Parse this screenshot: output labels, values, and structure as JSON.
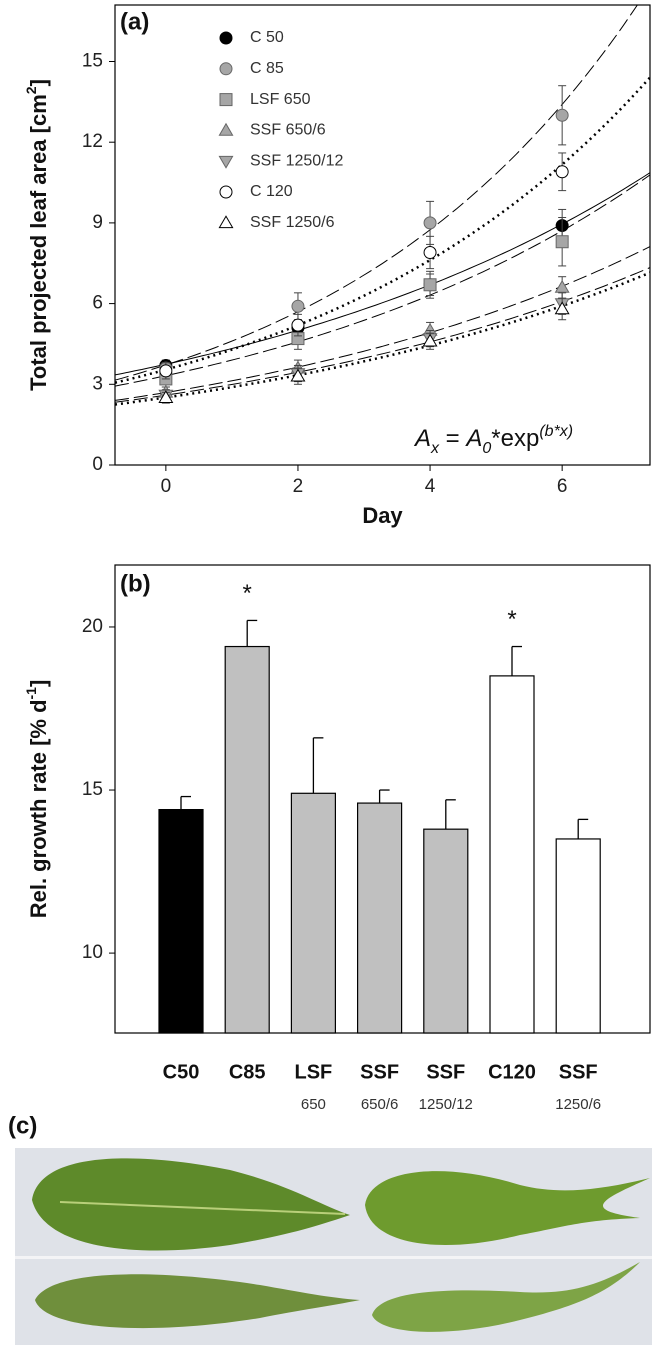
{
  "chart_data": [
    {
      "type": "scatter",
      "panel_label": "(a)",
      "xlabel": "Day",
      "ylabel": [
        "Total projected leaf area [cm",
        "2",
        "]"
      ],
      "equation": [
        "A",
        "x",
        " = ",
        "A",
        "0",
        "*exp",
        "(b*x)"
      ],
      "x": [
        0,
        2,
        4,
        6
      ],
      "xlim": [
        -0.77,
        7.33
      ],
      "ylim": [
        0,
        17.1
      ],
      "xticks": [
        0,
        2,
        4,
        6
      ],
      "yticks": [
        0,
        3,
        6,
        9,
        12,
        15
      ],
      "series": [
        {
          "name": "C 50",
          "marker": "circle",
          "color": "#000000",
          "line": "solid",
          "values": [
            3.7,
            5.1,
            6.7,
            8.9
          ],
          "errors": [
            0.2,
            0.3,
            0.4,
            0.6
          ]
        },
        {
          "name": "C 85",
          "marker": "circle",
          "color": "#a6a6a6",
          "line": "dashed",
          "values": [
            3.6,
            5.9,
            9.0,
            13.0
          ],
          "errors": [
            0.2,
            0.5,
            0.8,
            1.1
          ]
        },
        {
          "name": "LSF 650",
          "marker": "square",
          "color": "#a6a6a6",
          "line": "dashed",
          "values": [
            3.2,
            4.7,
            6.7,
            8.3
          ],
          "errors": [
            0.3,
            0.4,
            0.5,
            0.9
          ]
        },
        {
          "name": "SSF 650/6",
          "marker": "triangle-up",
          "color": "#a6a6a6",
          "line": "dashed",
          "values": [
            2.7,
            3.6,
            5.0,
            6.6
          ],
          "errors": [
            0.2,
            0.3,
            0.3,
            0.4
          ]
        },
        {
          "name": "SSF 1250/12",
          "marker": "triangle-down",
          "color": "#a6a6a6",
          "line": "dashed",
          "values": [
            2.6,
            3.4,
            4.7,
            6.0
          ],
          "errors": [
            0.2,
            0.3,
            0.3,
            0.4
          ]
        },
        {
          "name": "C 120",
          "marker": "circle",
          "color": "#ffffff",
          "line": "dotted",
          "values": [
            3.5,
            5.2,
            7.9,
            10.9
          ],
          "errors": [
            0.3,
            0.4,
            0.6,
            0.7
          ]
        },
        {
          "name": "SSF 1250/6",
          "marker": "triangle-up",
          "color": "#ffffff",
          "line": "dotted",
          "values": [
            2.5,
            3.3,
            4.6,
            5.8
          ],
          "errors": [
            0.2,
            0.3,
            0.3,
            0.4
          ]
        }
      ]
    },
    {
      "type": "bar",
      "panel_label": "(b)",
      "ylabel": [
        "Rel. growth rate [% d",
        "-1",
        "]"
      ],
      "categories": [
        "C50",
        "C85",
        "LSF",
        "SSF",
        "SSF",
        "C120",
        "SSF"
      ],
      "sublabels": [
        null,
        null,
        "650",
        "650/6",
        "1250/12",
        null,
        "1250/6"
      ],
      "values": [
        14.4,
        19.4,
        14.9,
        14.6,
        13.8,
        18.5,
        13.5
      ],
      "errors": [
        0.4,
        0.8,
        1.7,
        0.4,
        0.9,
        0.9,
        0.6
      ],
      "colors": [
        "#000000",
        "#c0c0c0",
        "#c0c0c0",
        "#c0c0c0",
        "#c0c0c0",
        "#ffffff",
        "#ffffff"
      ],
      "significance": [
        null,
        "*",
        null,
        null,
        null,
        "*",
        null
      ],
      "ylim": [
        7.55,
        21.9
      ],
      "yticks": [
        10,
        15,
        20
      ]
    }
  ],
  "panel_c": {
    "label": "(c)"
  }
}
